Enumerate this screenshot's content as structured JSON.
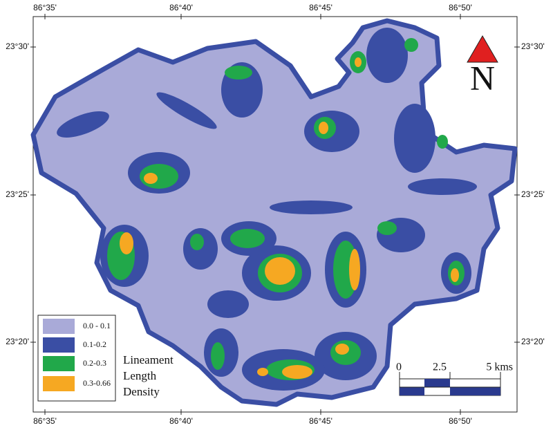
{
  "coordinates": {
    "top": [
      "86°35'",
      "86°40'",
      "86°45'",
      "86°50'"
    ],
    "bottom": [
      "86°35'",
      "86°40'",
      "86°45'",
      "86°50'"
    ],
    "left": [
      "23°30'",
      "23°25'",
      "23°20'"
    ],
    "right": [
      "23°30'",
      "23°25'",
      "23°20'"
    ]
  },
  "legend": [
    {
      "label": "0.0 - 0.1",
      "color": "#a9aad8"
    },
    {
      "label": "0.1-0.2",
      "color": "#3a4ea4"
    },
    {
      "label": "0.2-0.3",
      "color": "#21a84a"
    },
    {
      "label": "0.3-0.66",
      "color": "#f6a822"
    }
  ],
  "title": [
    "Lineament",
    "Length",
    "Density"
  ],
  "scale_bar": [
    "0",
    "2.5",
    "5 kms"
  ],
  "north": "N"
}
